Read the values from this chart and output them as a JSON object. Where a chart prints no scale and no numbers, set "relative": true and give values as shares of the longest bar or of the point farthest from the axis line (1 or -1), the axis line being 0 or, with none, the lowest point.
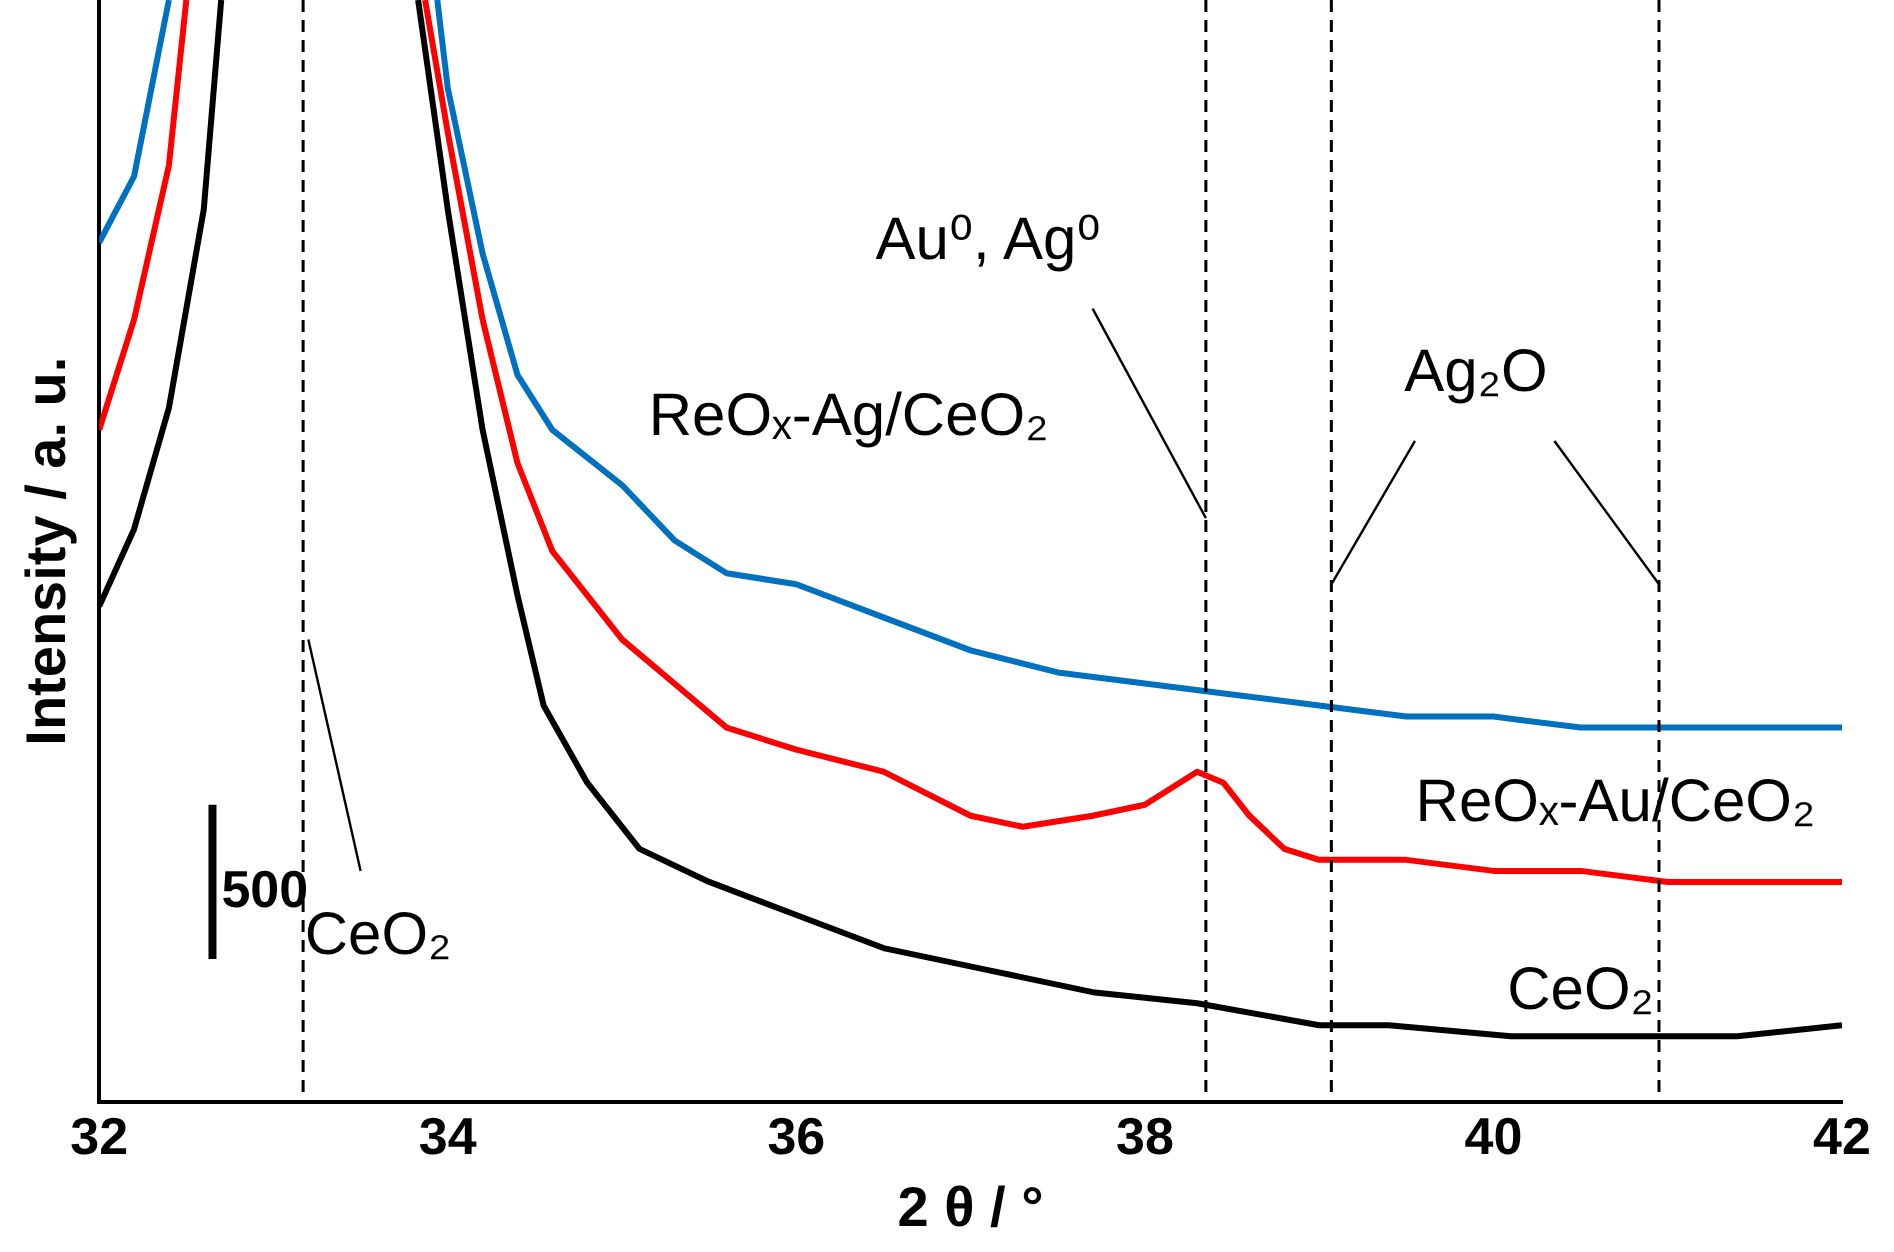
{
  "chart_data": {
    "type": "line",
    "xlabel": "2 θ / °",
    "ylabel": "Intensity / a. u.",
    "relative": true,
    "xlim": [
      32,
      42
    ],
    "xticks": [
      32,
      34,
      36,
      38,
      40,
      42
    ],
    "grid": false,
    "legend": false,
    "marker": "none",
    "line_style": "solid",
    "series": [
      {
        "name": "ReOₓ-Ag/CeO₂",
        "color": "#0070c0",
        "x": [
          32,
          32.2,
          32.3,
          32.4,
          33.3,
          33.94,
          34,
          34.2,
          34.4,
          34.6,
          35,
          35.3,
          35.6,
          36,
          36.5,
          37,
          37.5,
          38,
          38.5,
          39,
          39.5,
          40,
          40.5,
          41,
          42
        ],
        "values": [
          0.78,
          0.84,
          0.92,
          1,
          null,
          1,
          0.92,
          0.77,
          0.66,
          0.61,
          0.56,
          0.51,
          0.48,
          0.47,
          0.44,
          0.41,
          0.39,
          0.38,
          0.37,
          0.36,
          0.35,
          0.35,
          0.34,
          0.34,
          0.34
        ]
      },
      {
        "name": "ReOₓ-Au/CeO₂",
        "color": "#ff0000",
        "x": [
          32,
          32.2,
          32.4,
          32.5,
          33.3,
          33.87,
          34,
          34.2,
          34.4,
          34.6,
          35,
          35.3,
          35.6,
          36,
          36.5,
          37,
          37.3,
          37.7,
          38,
          38.3,
          38.45,
          38.6,
          38.8,
          39,
          39.5,
          40,
          40.5,
          41,
          41.5,
          42
        ],
        "values": [
          0.61,
          0.71,
          0.85,
          1,
          null,
          1,
          0.88,
          0.71,
          0.58,
          0.5,
          0.42,
          0.38,
          0.34,
          0.32,
          0.3,
          0.26,
          0.25,
          0.26,
          0.27,
          0.3,
          0.29,
          0.26,
          0.23,
          0.22,
          0.22,
          0.21,
          0.21,
          0.2,
          0.2,
          0.2
        ]
      },
      {
        "name": "CeO₂",
        "color": "#000000",
        "x": [
          32,
          32.2,
          32.4,
          32.6,
          32.7,
          33.3,
          33.83,
          34,
          34.2,
          34.4,
          34.55,
          34.8,
          35.1,
          35.5,
          36,
          36.5,
          37.1,
          37.7,
          38.3,
          39,
          39.4,
          40.1,
          40.8,
          41.4,
          42
        ],
        "values": [
          0.45,
          0.52,
          0.63,
          0.81,
          1,
          null,
          1,
          0.81,
          0.61,
          0.46,
          0.36,
          0.29,
          0.23,
          0.2,
          0.17,
          0.14,
          0.12,
          0.1,
          0.09,
          0.07,
          0.07,
          0.06,
          0.06,
          0.06,
          0.07
        ]
      }
    ],
    "ref_lines": [
      {
        "axis": "x",
        "value": 33.17,
        "label": "CeO₂",
        "line_style": "dashed",
        "color": "#000000"
      },
      {
        "axis": "x",
        "value": 38.35,
        "label": "Au⁰, Ag⁰",
        "line_style": "dashed",
        "color": "#000000"
      },
      {
        "axis": "x",
        "value": 39.07,
        "label": "Ag₂O",
        "line_style": "dashed",
        "color": "#000000"
      },
      {
        "axis": "x",
        "value": 40.95,
        "line_style": "dashed",
        "color": "#000000"
      }
    ],
    "annotations": [
      "500"
    ]
  }
}
